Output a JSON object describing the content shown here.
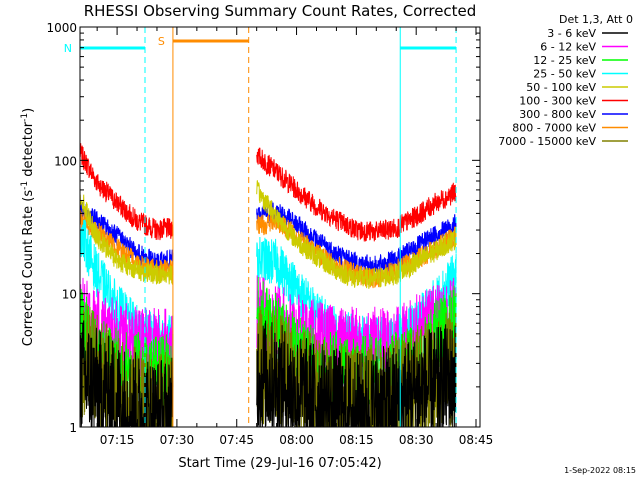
{
  "chart_data": {
    "type": "line",
    "title": "RHESSI Observing Summary Count Rates, Corrected",
    "xlabel": "Start Time (29-Jul-16 07:05:42)",
    "ylabel_main": "Corrected Count Rate (s",
    "ylabel_sup1": "-1",
    "ylabel_mid": " detector",
    "ylabel_sup2": "-1",
    "ylabel_end": ")",
    "yscale": "log",
    "ylim": [
      1,
      1000
    ],
    "yticks": [
      {
        "value": 1,
        "label": "1"
      },
      {
        "value": 10,
        "label": "10"
      },
      {
        "value": 100,
        "label": "100"
      },
      {
        "value": 1000,
        "label": "1000"
      }
    ],
    "xlim": [
      "07:05:42",
      "08:46:00"
    ],
    "xticks": [
      {
        "time": "07:15",
        "label": "07:15"
      },
      {
        "time": "07:30",
        "label": "07:30"
      },
      {
        "time": "07:45",
        "label": "07:45"
      },
      {
        "time": "08:00",
        "label": "08:00"
      },
      {
        "time": "08:15",
        "label": "08:15"
      },
      {
        "time": "08:30",
        "label": "08:30"
      },
      {
        "time": "08:45",
        "label": "08:45"
      }
    ],
    "legend": {
      "placement": "right",
      "header": "Det 1,3, Att 0",
      "entries": [
        {
          "name": "3 - 6 keV",
          "color": "#000000"
        },
        {
          "name": "6 - 12 keV",
          "color": "#ff00ff"
        },
        {
          "name": "12 - 25 keV",
          "color": "#00ff00"
        },
        {
          "name": "25 - 50 keV",
          "color": "#00ffff"
        },
        {
          "name": "50 - 100 keV",
          "color": "#cccc00"
        },
        {
          "name": "100 - 300 keV",
          "color": "#ff0000"
        },
        {
          "name": "300 - 800 keV",
          "color": "#0000ff"
        },
        {
          "name": "800 - 7000 keV",
          "color": "#ff8c00"
        },
        {
          "name": "7000 - 15000 keV",
          "color": "#808000"
        }
      ]
    },
    "annotations": [
      {
        "label": "N",
        "color": "#00ffff",
        "start": "07:05:42",
        "end": "07:22:00",
        "type": "night"
      },
      {
        "label": "",
        "color": "#00ffff",
        "start": "08:26:00",
        "end": "08:40:00",
        "type": "night"
      },
      {
        "label": "S",
        "color": "#ff8c00",
        "start": "07:29:00",
        "end": "07:48:00",
        "type": "saa"
      }
    ],
    "data_intervals": [
      {
        "start": "07:05:42",
        "end": "07:29:00"
      },
      {
        "start": "07:50:00",
        "end": "08:40:00"
      }
    ],
    "series": [
      {
        "name": "100 - 300 keV",
        "color": "#ff0000",
        "points": [
          [
            "07:05:42",
            115
          ],
          [
            "07:10",
            68
          ],
          [
            "07:15",
            48
          ],
          [
            "07:20",
            35
          ],
          [
            "07:25",
            30
          ],
          [
            "07:29",
            31
          ],
          [
            "07:50",
            110
          ],
          [
            "07:55",
            82
          ],
          [
            "08:00",
            60
          ],
          [
            "08:05",
            45
          ],
          [
            "08:10",
            36
          ],
          [
            "08:15",
            30
          ],
          [
            "08:20",
            29
          ],
          [
            "08:25",
            31
          ],
          [
            "08:30",
            38
          ],
          [
            "08:35",
            48
          ],
          [
            "08:40",
            58
          ]
        ]
      },
      {
        "name": "300 - 800 keV",
        "color": "#0000ff",
        "points": [
          [
            "07:05:42",
            42
          ],
          [
            "07:10",
            35
          ],
          [
            "07:15",
            27
          ],
          [
            "07:20",
            20
          ],
          [
            "07:25",
            17
          ],
          [
            "07:29",
            18
          ],
          [
            "07:50",
            38
          ],
          [
            "07:55",
            42
          ],
          [
            "08:00",
            33
          ],
          [
            "08:05",
            25
          ],
          [
            "08:10",
            20
          ],
          [
            "08:15",
            17
          ],
          [
            "08:20",
            16
          ],
          [
            "08:25",
            18
          ],
          [
            "08:30",
            22
          ],
          [
            "08:35",
            28
          ],
          [
            "08:40",
            33
          ]
        ]
      },
      {
        "name": "800 - 7000 keV",
        "color": "#ff8c00",
        "points": [
          [
            "07:05:42",
            36
          ],
          [
            "07:10",
            29
          ],
          [
            "07:15",
            22
          ],
          [
            "07:20",
            17
          ],
          [
            "07:25",
            15
          ],
          [
            "07:29",
            15
          ],
          [
            "07:50",
            32
          ],
          [
            "07:55",
            35
          ],
          [
            "08:00",
            27
          ],
          [
            "08:05",
            20
          ],
          [
            "08:10",
            16
          ],
          [
            "08:15",
            14
          ],
          [
            "08:20",
            13
          ],
          [
            "08:25",
            15
          ],
          [
            "08:30",
            18
          ],
          [
            "08:35",
            22
          ],
          [
            "08:40",
            27
          ]
        ]
      },
      {
        "name": "50 - 100 keV",
        "color": "#cccc00",
        "points": [
          [
            "07:05:42",
            55
          ],
          [
            "07:10",
            26
          ],
          [
            "07:15",
            18
          ],
          [
            "07:20",
            15
          ],
          [
            "07:25",
            14
          ],
          [
            "07:29",
            14
          ],
          [
            "07:50",
            60
          ],
          [
            "07:55",
            38
          ],
          [
            "08:00",
            25
          ],
          [
            "08:05",
            19
          ],
          [
            "08:10",
            15
          ],
          [
            "08:15",
            13
          ],
          [
            "08:20",
            13
          ],
          [
            "08:25",
            14
          ],
          [
            "08:30",
            17
          ],
          [
            "08:35",
            21
          ],
          [
            "08:40",
            26
          ]
        ]
      },
      {
        "name": "25 - 50 keV",
        "color": "#00ffff",
        "points": [
          [
            "07:05:42",
            30
          ],
          [
            "07:10",
            14
          ],
          [
            "07:15",
            8
          ],
          [
            "07:20",
            5.5
          ],
          [
            "07:25",
            4.6
          ],
          [
            "07:29",
            4.6
          ],
          [
            "07:50",
            18
          ],
          [
            "07:55",
            17
          ],
          [
            "08:00",
            11
          ],
          [
            "08:05",
            7
          ],
          [
            "08:10",
            5.2
          ],
          [
            "08:15",
            4.6
          ],
          [
            "08:20",
            4.4
          ],
          [
            "08:25",
            4.6
          ],
          [
            "08:30",
            6
          ],
          [
            "08:35",
            9
          ],
          [
            "08:40",
            14
          ]
        ]
      },
      {
        "name": "6 - 12 keV",
        "color": "#ff00ff",
        "points": [
          [
            "07:05:42",
            7
          ],
          [
            "07:10",
            5.5
          ],
          [
            "07:15",
            4.5
          ],
          [
            "07:20",
            4
          ],
          [
            "07:25",
            4
          ],
          [
            "07:29",
            4
          ],
          [
            "07:50",
            7
          ],
          [
            "07:55",
            6
          ],
          [
            "08:00",
            5
          ],
          [
            "08:05",
            4.5
          ],
          [
            "08:10",
            4
          ],
          [
            "08:15",
            4
          ],
          [
            "08:20",
            4
          ],
          [
            "08:25",
            4
          ],
          [
            "08:30",
            5
          ],
          [
            "08:35",
            6
          ],
          [
            "08:40",
            7
          ]
        ]
      },
      {
        "name": "12 - 25 keV",
        "color": "#00ff00",
        "points": [
          [
            "07:05:42",
            6
          ],
          [
            "07:10",
            3.5
          ],
          [
            "07:15",
            2.8
          ],
          [
            "07:20",
            2.6
          ],
          [
            "07:25",
            2.5
          ],
          [
            "07:29",
            2.5
          ],
          [
            "07:50",
            7
          ],
          [
            "07:55",
            5
          ],
          [
            "08:00",
            3.5
          ],
          [
            "08:05",
            2.8
          ],
          [
            "08:10",
            2.6
          ],
          [
            "08:15",
            2.5
          ],
          [
            "08:20",
            2.5
          ],
          [
            "08:25",
            2.6
          ],
          [
            "08:30",
            3
          ],
          [
            "08:35",
            4.5
          ],
          [
            "08:40",
            6
          ]
        ]
      },
      {
        "name": "7000 - 15000 keV",
        "color": "#808000",
        "points": [
          [
            "07:05:42",
            3.5
          ],
          [
            "07:10",
            2.5
          ],
          [
            "07:15",
            1.8
          ],
          [
            "07:20",
            1.4
          ],
          [
            "07:25",
            1.3
          ],
          [
            "07:29",
            1.3
          ],
          [
            "07:50",
            3
          ],
          [
            "07:55",
            2.8
          ],
          [
            "08:00",
            2.2
          ],
          [
            "08:05",
            1.8
          ],
          [
            "08:10",
            1.6
          ],
          [
            "08:15",
            1.5
          ],
          [
            "08:20",
            1.5
          ],
          [
            "08:25",
            1.7
          ],
          [
            "08:30",
            2
          ],
          [
            "08:35",
            2.4
          ],
          [
            "08:40",
            2.8
          ]
        ]
      },
      {
        "name": "3 - 6 keV",
        "color": "#000000",
        "points": [
          [
            "07:05:42",
            2.5
          ],
          [
            "07:10",
            2
          ],
          [
            "07:15",
            1.6
          ],
          [
            "07:20",
            1.3
          ],
          [
            "07:25",
            1.2
          ],
          [
            "07:29",
            1.2
          ],
          [
            "07:50",
            2.5
          ],
          [
            "07:55",
            2.2
          ],
          [
            "08:00",
            1.8
          ],
          [
            "08:05",
            1.6
          ],
          [
            "08:10",
            1.4
          ],
          [
            "08:15",
            1.3
          ],
          [
            "08:20",
            1.4
          ],
          [
            "08:25",
            1.5
          ],
          [
            "08:30",
            1.8
          ],
          [
            "08:35",
            2
          ],
          [
            "08:40",
            2.3
          ]
        ]
      }
    ]
  },
  "footer": {
    "timestamp": "1-Sep-2022 08:15"
  }
}
